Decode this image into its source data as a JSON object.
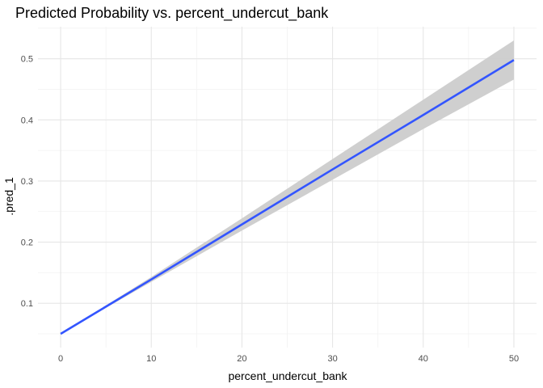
{
  "chart_data": {
    "type": "line",
    "title": "Predicted Probability vs. percent_undercut_bank",
    "xlabel": "percent_undercut_bank",
    "ylabel": ".pred_1",
    "xlim": [
      -2.5,
      52.5
    ],
    "ylim": [
      0.0275,
      0.5525
    ],
    "x_ticks": [
      0,
      10,
      20,
      30,
      40,
      50
    ],
    "x_tick_labels": [
      "0",
      "10",
      "20",
      "30",
      "40",
      "50"
    ],
    "y_ticks": [
      0.1,
      0.2,
      0.3,
      0.4,
      0.5
    ],
    "y_tick_labels": [
      "0.1",
      "0.2",
      "0.3",
      "0.4",
      "0.5"
    ],
    "grid": true,
    "legend": "none",
    "series": [
      {
        "color": "#3355ff",
        "x": [
          0,
          10,
          20,
          30,
          40,
          50
        ],
        "y": [
          0.05,
          0.139,
          0.229,
          0.319,
          0.408,
          0.498
        ]
      }
    ],
    "band": {
      "color": "#cccccc",
      "x": [
        0,
        10,
        20,
        30,
        40,
        50
      ],
      "lower": [
        0.05,
        0.135,
        0.219,
        0.302,
        0.385,
        0.466
      ],
      "upper": [
        0.05,
        0.143,
        0.239,
        0.336,
        0.433,
        0.53
      ]
    }
  }
}
